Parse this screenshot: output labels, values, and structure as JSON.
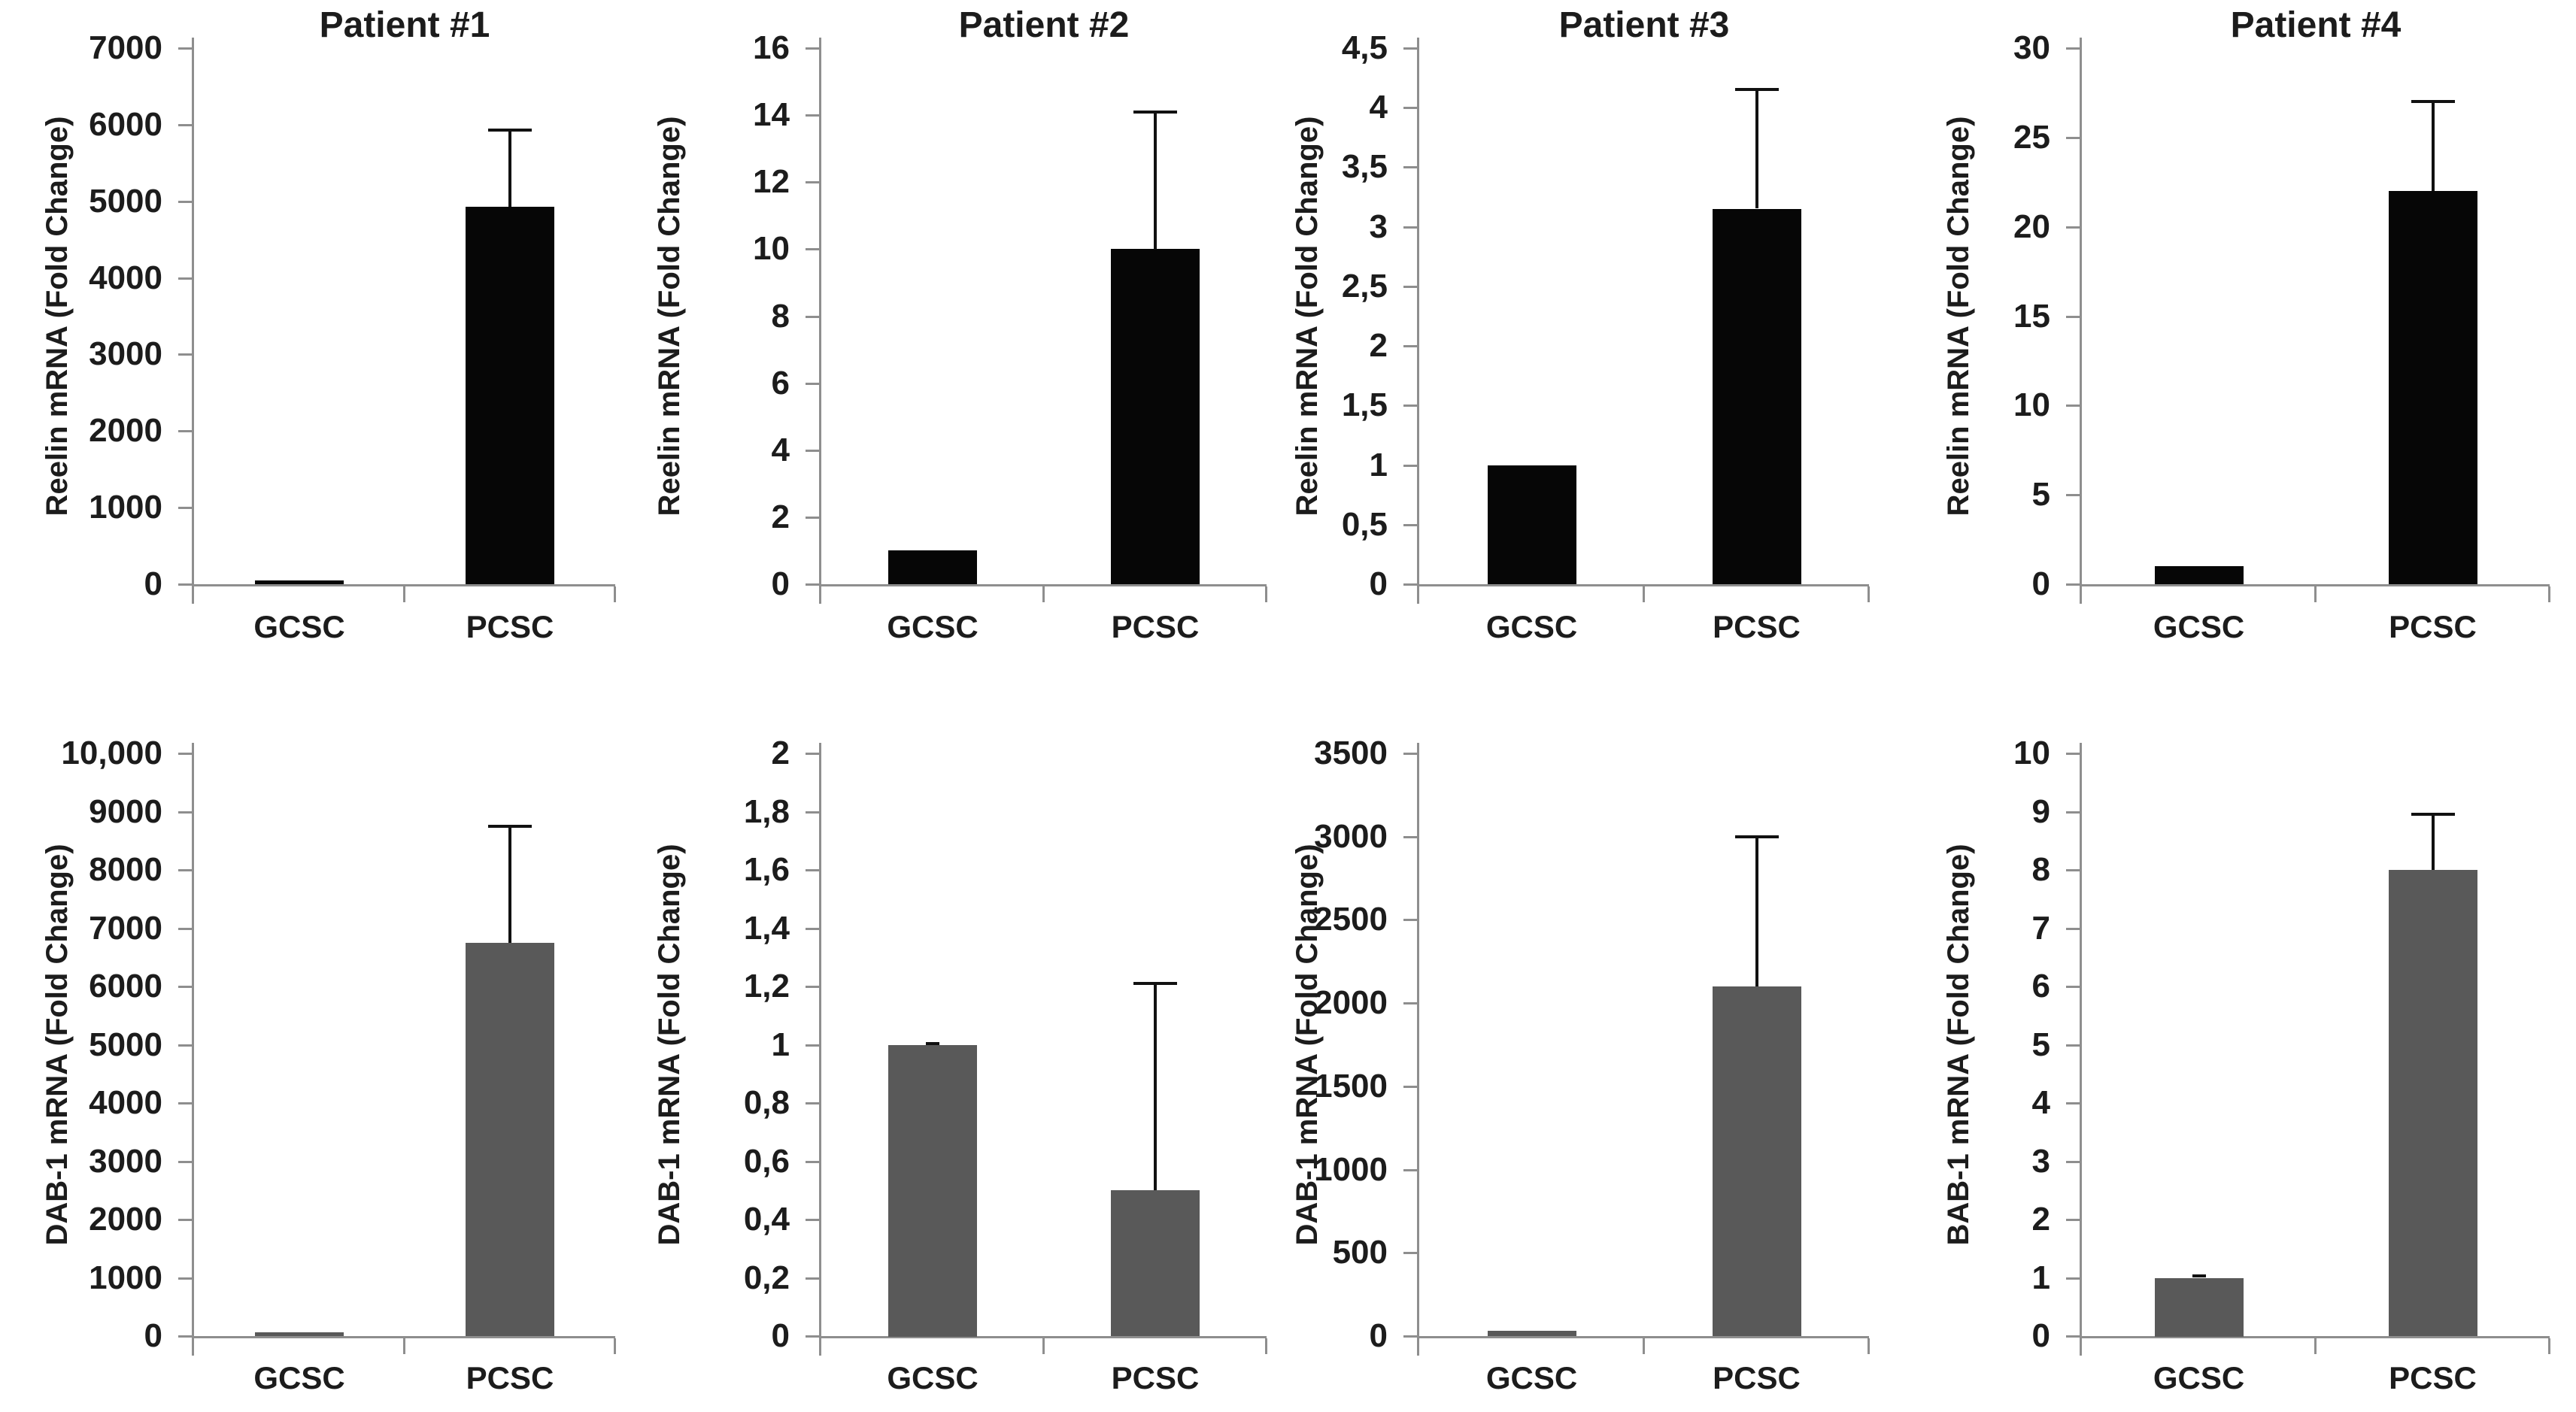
{
  "figure": {
    "background": "#ffffff",
    "text_color": "#1c1c1c",
    "axis_color": "#8e8e8e",
    "error_bar_color": "#111111",
    "row1_bar_color": "#060606",
    "row2_bar_color": "#595959",
    "categories": [
      "GCSC",
      "PCSC"
    ]
  },
  "chart_data": [
    {
      "type": "bar",
      "id": "patient-1-reelin",
      "title": "Patient #1",
      "ylabel": "Reelin mRNA (Fold Change)",
      "categories": [
        "GCSC",
        "PCSC"
      ],
      "values": [
        50,
        4930
      ],
      "errors_up": [
        0,
        1000
      ],
      "ylim": [
        0,
        7000
      ],
      "ytick_values": [
        0,
        1000,
        2000,
        3000,
        4000,
        5000,
        6000,
        7000
      ],
      "ytick_labels": [
        "0",
        "1000",
        "2000",
        "3000",
        "4000",
        "5000",
        "6000",
        "7000"
      ],
      "bar_color": "#060606",
      "grid": false,
      "legend": "none"
    },
    {
      "type": "bar",
      "id": "patient-2-reelin",
      "title": "Patient #2",
      "ylabel": "Reelin mRNA (Fold Change)",
      "categories": [
        "GCSC",
        "PCSC"
      ],
      "values": [
        1,
        10
      ],
      "errors_up": [
        0,
        4.1
      ],
      "ylim": [
        0,
        16
      ],
      "ytick_values": [
        0,
        2,
        4,
        6,
        8,
        10,
        12,
        14,
        16
      ],
      "ytick_labels": [
        "0",
        "2",
        "4",
        "6",
        "8",
        "10",
        "12",
        "14",
        "16"
      ],
      "bar_color": "#060606",
      "grid": false,
      "legend": "none"
    },
    {
      "type": "bar",
      "id": "patient-3-reelin",
      "title": "Patient #3",
      "ylabel": "Reelin mRNA (Fold Change)",
      "categories": [
        "GCSC",
        "PCSC"
      ],
      "values": [
        1,
        3.15
      ],
      "errors_up": [
        0,
        1.0
      ],
      "ylim": [
        0,
        4.5
      ],
      "ytick_values": [
        0,
        0.5,
        1,
        1.5,
        2,
        2.5,
        3,
        3.5,
        4,
        4.5
      ],
      "ytick_labels": [
        "0",
        "0,5",
        "1",
        "1,5",
        "2",
        "2,5",
        "3",
        "3,5",
        "4",
        "4,5"
      ],
      "bar_color": "#060606",
      "grid": false,
      "legend": "none"
    },
    {
      "type": "bar",
      "id": "patient-4-reelin",
      "title": "Patient #4",
      "ylabel": "Reelin mRNA (Fold Change)",
      "categories": [
        "GCSC",
        "PCSC"
      ],
      "values": [
        1,
        22
      ],
      "errors_up": [
        0,
        5
      ],
      "ylim": [
        0,
        30
      ],
      "ytick_values": [
        0,
        5,
        10,
        15,
        20,
        25,
        30
      ],
      "ytick_labels": [
        "0",
        "5",
        "10",
        "15",
        "20",
        "25",
        "30"
      ],
      "bar_color": "#060606",
      "grid": false,
      "legend": "none"
    },
    {
      "type": "bar",
      "id": "patient-1-dab1",
      "title": "",
      "ylabel": "DAB-1 mRNA (Fold Change)",
      "categories": [
        "GCSC",
        "PCSC"
      ],
      "values": [
        60,
        6750
      ],
      "errors_up": [
        0,
        2000
      ],
      "ylim": [
        0,
        10000
      ],
      "ytick_values": [
        0,
        1000,
        2000,
        3000,
        4000,
        5000,
        6000,
        7000,
        8000,
        9000,
        10000
      ],
      "ytick_labels": [
        "0",
        "1000",
        "2000",
        "3000",
        "4000",
        "5000",
        "6000",
        "7000",
        "8000",
        "9000",
        "10,000"
      ],
      "bar_color": "#595959",
      "grid": false,
      "legend": "none"
    },
    {
      "type": "bar",
      "id": "patient-2-dab1",
      "title": "",
      "ylabel": "DAB-1 mRNA (Fold Change)",
      "categories": [
        "GCSC",
        "PCSC"
      ],
      "values": [
        1,
        0.5
      ],
      "errors_up": [
        0.005,
        0.71
      ],
      "ylim": [
        0,
        2
      ],
      "ytick_values": [
        0,
        0.2,
        0.4,
        0.6,
        0.8,
        1,
        1.2,
        1.4,
        1.6,
        1.8,
        2
      ],
      "ytick_labels": [
        "0",
        "0,2",
        "0,4",
        "0,6",
        "0,8",
        "1",
        "1,2",
        "1,4",
        "1,6",
        "1,8",
        "2"
      ],
      "bar_color": "#595959",
      "grid": false,
      "legend": "none"
    },
    {
      "type": "bar",
      "id": "patient-3-dab1",
      "title": "",
      "ylabel": "DAB-1 mRNA (Fold Change)",
      "categories": [
        "GCSC",
        "PCSC"
      ],
      "values": [
        30,
        2100
      ],
      "errors_up": [
        0,
        900
      ],
      "ylim": [
        0,
        3500
      ],
      "ytick_values": [
        0,
        500,
        1000,
        1500,
        2000,
        2500,
        3000,
        3500
      ],
      "ytick_labels": [
        "0",
        "500",
        "1000",
        "1500",
        "2000",
        "2500",
        "3000",
        "3500"
      ],
      "bar_color": "#595959",
      "grid": false,
      "legend": "none"
    },
    {
      "type": "bar",
      "id": "patient-4-bab1",
      "title": "",
      "ylabel": "BAB-1 mRNA (Fold Change)",
      "categories": [
        "GCSC",
        "PCSC"
      ],
      "values": [
        1,
        8
      ],
      "errors_up": [
        0.03,
        0.95
      ],
      "ylim": [
        0,
        10
      ],
      "ytick_values": [
        0,
        1,
        2,
        3,
        4,
        5,
        6,
        7,
        8,
        9,
        10
      ],
      "ytick_labels": [
        "0",
        "1",
        "2",
        "3",
        "4",
        "5",
        "6",
        "7",
        "8",
        "9",
        "10"
      ],
      "bar_color": "#595959",
      "grid": false,
      "legend": "none"
    }
  ]
}
